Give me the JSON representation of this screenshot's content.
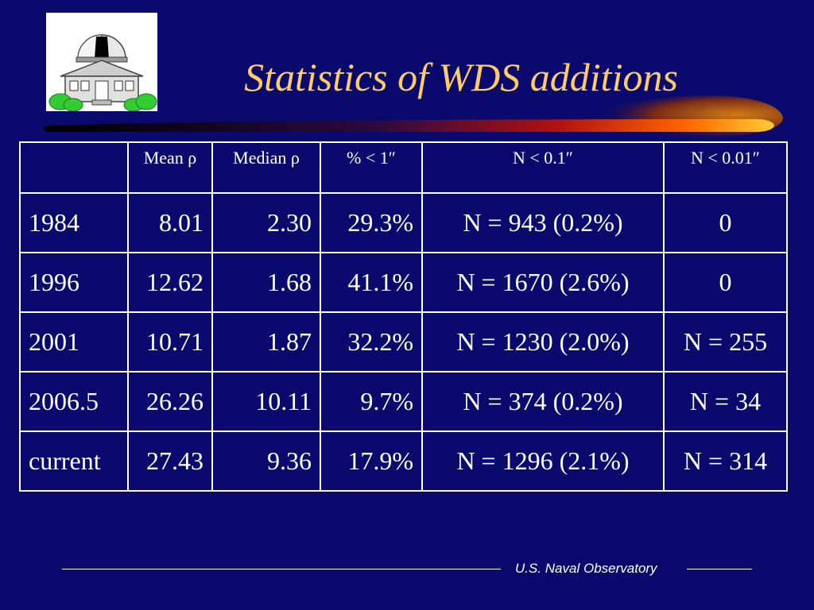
{
  "title": "Statistics of WDS additions",
  "footer": "U.S. Naval Observatory",
  "table": {
    "headers": [
      "",
      "Mean ρ",
      "Median ρ",
      "% < 1″",
      "N < 0.1″",
      "N < 0.01″"
    ],
    "rows": [
      [
        "1984",
        "8.01",
        "2.30",
        "29.3%",
        "N = 943 (0.2%)",
        "0"
      ],
      [
        "1996",
        "12.62",
        "1.68",
        "41.1%",
        "N = 1670 (2.6%)",
        "0"
      ],
      [
        "2001",
        "10.71",
        "1.87",
        "32.2%",
        "N = 1230 (2.0%)",
        "N = 255"
      ],
      [
        "2006.5",
        "26.26",
        "10.11",
        "9.7%",
        "N = 374 (0.2%)",
        "N = 34"
      ],
      [
        "current",
        "27.43",
        "9.36",
        "17.9%",
        "N = 1296 (2.1%)",
        "N = 314"
      ]
    ]
  },
  "colors": {
    "background": "#0a0a6e",
    "title": "#ffcc66",
    "text": "#ffffff"
  },
  "logo_icon": "observatory-building-icon"
}
